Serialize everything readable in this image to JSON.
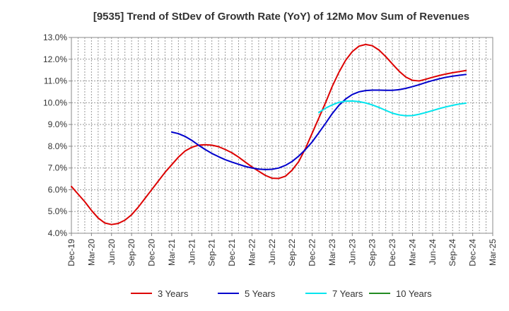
{
  "chart_data": {
    "type": "line",
    "title": "[9535]  Trend of StDev of Growth Rate (YoY) of 12Mo Mov Sum of Revenues",
    "xlabel": "",
    "ylabel": "",
    "ylim": [
      4.0,
      13.0
    ],
    "y_ticks": [
      "4.0%",
      "5.0%",
      "6.0%",
      "7.0%",
      "8.0%",
      "9.0%",
      "10.0%",
      "11.0%",
      "12.0%",
      "13.0%"
    ],
    "x_ticks": [
      "Dec-19",
      "Mar-20",
      "Jun-20",
      "Sep-20",
      "Dec-20",
      "Mar-21",
      "Jun-21",
      "Sep-21",
      "Dec-21",
      "Mar-22",
      "Jun-22",
      "Sep-22",
      "Dec-22",
      "Mar-23",
      "Jun-23",
      "Sep-23",
      "Dec-23",
      "Mar-24",
      "Jun-24",
      "Sep-24",
      "Dec-24",
      "Mar-25"
    ],
    "x_range_months": [
      0,
      63
    ],
    "grid": true,
    "legend_position": "bottom",
    "series": [
      {
        "name": "3 Years",
        "color": "#dd0000",
        "points": [
          [
            0,
            6.15
          ],
          [
            1,
            5.8
          ],
          [
            2,
            5.45
          ],
          [
            3,
            5.05
          ],
          [
            4,
            4.7
          ],
          [
            5,
            4.47
          ],
          [
            6,
            4.4
          ],
          [
            7,
            4.45
          ],
          [
            8,
            4.6
          ],
          [
            9,
            4.85
          ],
          [
            10,
            5.2
          ],
          [
            11,
            5.6
          ],
          [
            12,
            6.0
          ],
          [
            13,
            6.4
          ],
          [
            14,
            6.8
          ],
          [
            15,
            7.15
          ],
          [
            16,
            7.5
          ],
          [
            17,
            7.78
          ],
          [
            18,
            7.95
          ],
          [
            19,
            8.05
          ],
          [
            20,
            8.07
          ],
          [
            21,
            8.05
          ],
          [
            22,
            7.98
          ],
          [
            23,
            7.85
          ],
          [
            24,
            7.7
          ],
          [
            25,
            7.5
          ],
          [
            26,
            7.27
          ],
          [
            27,
            7.05
          ],
          [
            28,
            6.85
          ],
          [
            29,
            6.66
          ],
          [
            30,
            6.53
          ],
          [
            31,
            6.52
          ],
          [
            32,
            6.62
          ],
          [
            33,
            6.9
          ],
          [
            34,
            7.3
          ],
          [
            35,
            7.9
          ],
          [
            36,
            8.6
          ],
          [
            37,
            9.3
          ],
          [
            38,
            10.0
          ],
          [
            39,
            10.75
          ],
          [
            40,
            11.4
          ],
          [
            41,
            11.95
          ],
          [
            42,
            12.35
          ],
          [
            43,
            12.6
          ],
          [
            44,
            12.68
          ],
          [
            45,
            12.62
          ],
          [
            46,
            12.42
          ],
          [
            47,
            12.12
          ],
          [
            48,
            11.78
          ],
          [
            49,
            11.45
          ],
          [
            50,
            11.18
          ],
          [
            51,
            11.03
          ],
          [
            52,
            11.0
          ],
          [
            53,
            11.08
          ],
          [
            54,
            11.17
          ],
          [
            55,
            11.25
          ],
          [
            56,
            11.32
          ],
          [
            57,
            11.38
          ],
          [
            58,
            11.43
          ],
          [
            59,
            11.48
          ]
        ]
      },
      {
        "name": "5 Years",
        "color": "#0000cc",
        "points": [
          [
            15,
            8.65
          ],
          [
            16,
            8.58
          ],
          [
            17,
            8.45
          ],
          [
            18,
            8.27
          ],
          [
            19,
            8.05
          ],
          [
            20,
            7.85
          ],
          [
            21,
            7.67
          ],
          [
            22,
            7.52
          ],
          [
            23,
            7.38
          ],
          [
            24,
            7.27
          ],
          [
            25,
            7.17
          ],
          [
            26,
            7.07
          ],
          [
            27,
            7.0
          ],
          [
            28,
            6.95
          ],
          [
            29,
            6.93
          ],
          [
            30,
            6.94
          ],
          [
            31,
            7.0
          ],
          [
            32,
            7.12
          ],
          [
            33,
            7.3
          ],
          [
            34,
            7.55
          ],
          [
            35,
            7.85
          ],
          [
            36,
            8.2
          ],
          [
            37,
            8.62
          ],
          [
            38,
            9.05
          ],
          [
            39,
            9.5
          ],
          [
            40,
            9.88
          ],
          [
            41,
            10.17
          ],
          [
            42,
            10.38
          ],
          [
            43,
            10.5
          ],
          [
            44,
            10.56
          ],
          [
            45,
            10.58
          ],
          [
            46,
            10.58
          ],
          [
            47,
            10.57
          ],
          [
            48,
            10.57
          ],
          [
            49,
            10.6
          ],
          [
            50,
            10.66
          ],
          [
            51,
            10.74
          ],
          [
            52,
            10.83
          ],
          [
            53,
            10.93
          ],
          [
            54,
            11.02
          ],
          [
            55,
            11.1
          ],
          [
            56,
            11.17
          ],
          [
            57,
            11.22
          ],
          [
            58,
            11.26
          ],
          [
            59,
            11.3
          ]
        ]
      },
      {
        "name": "7 Years",
        "color": "#00e5ee",
        "points": [
          [
            37,
            9.55
          ],
          [
            38,
            9.75
          ],
          [
            39,
            9.9
          ],
          [
            40,
            10.02
          ],
          [
            41,
            10.07
          ],
          [
            42,
            10.08
          ],
          [
            43,
            10.05
          ],
          [
            44,
            9.99
          ],
          [
            45,
            9.9
          ],
          [
            46,
            9.78
          ],
          [
            47,
            9.65
          ],
          [
            48,
            9.52
          ],
          [
            49,
            9.44
          ],
          [
            50,
            9.4
          ],
          [
            51,
            9.41
          ],
          [
            52,
            9.47
          ],
          [
            53,
            9.55
          ],
          [
            54,
            9.64
          ],
          [
            55,
            9.73
          ],
          [
            56,
            9.81
          ],
          [
            57,
            9.88
          ],
          [
            58,
            9.94
          ],
          [
            59,
            9.98
          ]
        ]
      },
      {
        "name": "10 Years",
        "color": "#228b22",
        "points": []
      }
    ]
  }
}
